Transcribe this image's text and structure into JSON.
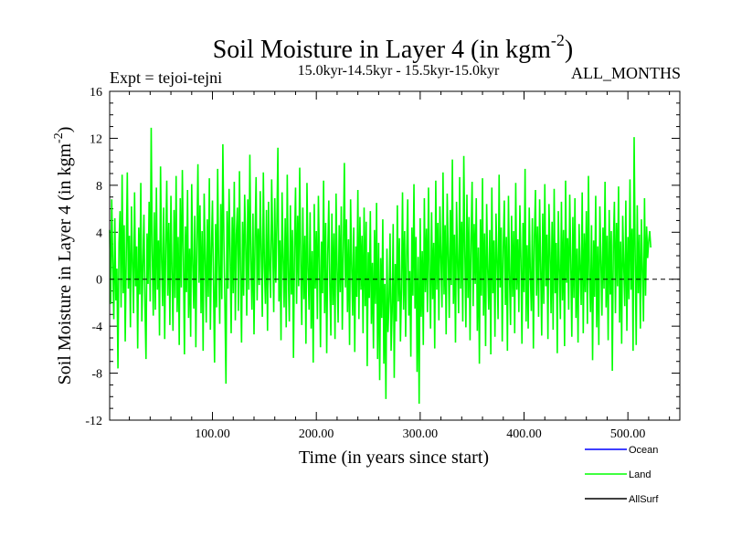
{
  "chart_data": {
    "type": "line",
    "title": "Soil Moisture in Layer 4 (in kgm",
    "title_sup": "-2",
    "title_close": ")",
    "experiment": "Expt = tejoi-tejni",
    "period": "15.0kyr-14.5kyr - 15.5kyr-15.0kyr",
    "months": "ALL_MONTHS",
    "xlabel": "Time (in years since start)",
    "ylabel": "Soil Moisture in Layer 4 (in kgm",
    "ylabel_sup": "-2",
    "ylabel_close": ")",
    "xlim": [
      1,
      550
    ],
    "ylim": [
      -12,
      16
    ],
    "x_ticks": [
      {
        "value": 100,
        "label": "100.00"
      },
      {
        "value": 200,
        "label": "200.00"
      },
      {
        "value": 300,
        "label": "300.00"
      },
      {
        "value": 400,
        "label": "400.00"
      },
      {
        "value": 500,
        "label": "500.00"
      }
    ],
    "y_ticks": [
      {
        "value": -12,
        "label": "-12"
      },
      {
        "value": -8,
        "label": "-8"
      },
      {
        "value": -4,
        "label": "-4"
      },
      {
        "value": 0,
        "label": "0"
      },
      {
        "value": 4,
        "label": "4"
      },
      {
        "value": 8,
        "label": "8"
      },
      {
        "value": 12,
        "label": "12"
      },
      {
        "value": 16,
        "label": "16"
      }
    ],
    "zero_line": true,
    "legend": [
      {
        "name": "Ocean",
        "color": "#0000ff"
      },
      {
        "name": "Land",
        "color": "#00ff00"
      },
      {
        "name": "AllSurf",
        "color": "#000000"
      }
    ],
    "series": [
      {
        "name": "Land",
        "color": "#00ff00",
        "x_start": 1,
        "x_step": 1,
        "values": [
          4.2,
          -2.1,
          6.8,
          1.5,
          -3.4,
          5.2,
          -1.8,
          0.9,
          -7.6,
          3.1,
          5.8,
          -2.4,
          8.9,
          -1.2,
          4.6,
          -5.3,
          2.2,
          9.1,
          -0.8,
          3.7,
          -4.1,
          6.2,
          1.4,
          -2.9,
          7.4,
          -0.6,
          2.8,
          -5.9,
          4.4,
          -1.3,
          8.2,
          -3.6,
          1.1,
          5.5,
          -2.2,
          -6.8,
          3.9,
          -0.4,
          6.6,
          -1.9,
          12.9,
          2.4,
          -3.1,
          5.7,
          -2.6,
          7.8,
          -0.9,
          3.3,
          -4.8,
          9.6,
          1.7,
          -2.3,
          6.1,
          -5.1,
          2.9,
          8.4,
          -1.4,
          4.8,
          -3.9,
          7.1,
          0.6,
          -4.4,
          5.9,
          -1.6,
          8.8,
          -2.8,
          3.6,
          -5.6,
          6.9,
          -0.7,
          9.3,
          2.1,
          -6.4,
          4.5,
          -1.1,
          7.6,
          -3.3,
          2.6,
          -4.9,
          8.1,
          1.3,
          -2.5,
          5.4,
          -5.8,
          3.2,
          9.8,
          -0.3,
          6.3,
          -2.9,
          4.1,
          -6.1,
          7.3,
          1.8,
          -3.7,
          5.1,
          -1.5,
          8.6,
          -4.3,
          2.5,
          6.7,
          -0.5,
          -7.1,
          4.7,
          -2.4,
          9.4,
          1.2,
          -3.8,
          6.4,
          -1.7,
          11.5,
          3.4,
          -2.2,
          -8.9,
          5.8,
          -0.8,
          7.7,
          2.3,
          -4.6,
          5.3,
          -1.2,
          8.3,
          -3.5,
          3.8,
          6.1,
          -2.7,
          9.2,
          0.7,
          -5.4,
          4.9,
          -1.4,
          7.2,
          2.9,
          -3.1,
          6.8,
          -0.9,
          10.6,
          1.6,
          -2.6,
          5.6,
          -4.7,
          3.5,
          8.7,
          -1.8,
          4.3,
          -0.5,
          7.5,
          2.2,
          -3.2,
          9.1,
          1.1,
          -2.1,
          5.9,
          -4.4,
          6.6,
          0.8,
          -1.6,
          8.5,
          3.1,
          -2.8,
          6.9,
          -0.3,
          4.6,
          11.2,
          -1.9,
          3.3,
          -5.2,
          7.4,
          1.9,
          -2.4,
          5.2,
          -4.1,
          8.9,
          0.4,
          -3.6,
          6.3,
          -1.3,
          4.2,
          -6.7,
          2.7,
          7.8,
          -2.1,
          5.4,
          -0.6,
          9.5,
          1.4,
          -3.9,
          6.1,
          -1.7,
          3.7,
          -5.5,
          8.2,
          0.9,
          -2.6,
          5.7,
          -4.2,
          2.4,
          -7.1,
          6.4,
          -0.8,
          4.1,
          -3.4,
          7.1,
          1.6,
          -5.8,
          3.2,
          -1.2,
          8.4,
          -2.9,
          4.8,
          -6.3,
          2.1,
          6.7,
          -0.4,
          -4.8,
          5.6,
          -2.2,
          3.9,
          -5.1,
          7.3,
          0.8,
          -3.7,
          4.6,
          -1.1,
          6.2,
          -4.3,
          2.6,
          9.9,
          -0.7,
          5.1,
          -2.8,
          3.4,
          -5.6,
          6.8,
          1.2,
          -3.1,
          4.4,
          -6.2,
          2.8,
          -1.5,
          7.6,
          -3.4,
          5.3,
          -0.9,
          3.7,
          -4.6,
          6.1,
          -2.3,
          4.9,
          -7.4,
          2.3,
          -1.6,
          5.8,
          -3.8,
          1.4,
          -5.9,
          4.2,
          -2.1,
          6.5,
          -6.8,
          3.1,
          -8.6,
          1.8,
          -3.3,
          5.1,
          -7.2,
          -0.4,
          -10.2,
          2.6,
          -4.5,
          -1.8,
          3.9,
          -6.1,
          -2.7,
          4.7,
          -8.4,
          1.3,
          -3.6,
          6.3,
          -1.9,
          3.5,
          -5.3,
          -0.8,
          7.4,
          -2.6,
          4.1,
          -4.9,
          2.2,
          6.8,
          -3.1,
          0.7,
          -6.6,
          4.4,
          -1.4,
          8.1,
          -2.5,
          3.6,
          -7.9,
          1.9,
          -10.6,
          5.2,
          -3.2,
          2.4,
          -5.6,
          6.9,
          -1.1,
          4.3,
          -2.8,
          7.8,
          0.6,
          -4.2,
          5.7,
          -1.7,
          3.1,
          -5.9,
          8.4,
          -0.9,
          4.8,
          -3.5,
          6.2,
          1.8,
          -2.4,
          9.1,
          -1.3,
          4.6,
          -4.7,
          7.3,
          2.1,
          -3.3,
          5.9,
          -0.5,
          10.2,
          -2.1,
          3.8,
          -5.4,
          6.6,
          1.3,
          -2.9,
          8.7,
          -0.8,
          4.9,
          -3.6,
          10.5,
          2.4,
          -4.1,
          7.2,
          -1.6,
          5.3,
          -5.2,
          3.2,
          8.3,
          -2.3,
          4.7,
          -0.4,
          6.9,
          -4.4,
          2.7,
          -7.2,
          5.1,
          -1.4,
          8.6,
          -3.1,
          3.9,
          -5.7,
          6.4,
          0.9,
          -2.6,
          4.2,
          -6.4,
          7.8,
          -1.2,
          3.3,
          -4.9,
          5.6,
          1.5,
          -3.4,
          8.9,
          -0.7,
          4.4,
          -5.3,
          2.8,
          6.7,
          -2.2,
          3.6,
          -6.1,
          7.1,
          0.3,
          -3.9,
          5.4,
          -1.5,
          4.1,
          -4.6,
          8.2,
          -0.9,
          3.4,
          -2.8,
          6.3,
          1.7,
          -5.5,
          4.8,
          -1.1,
          9.4,
          -3.6,
          2.9,
          -4.2,
          6.1,
          0.6,
          -2.7,
          5.2,
          -5.9,
          3.7,
          7.6,
          -1.4,
          4.5,
          -3.2,
          6.8,
          1.1,
          -4.8,
          5.6,
          -2.1,
          8.1,
          -0.6,
          3.8,
          -5.1,
          6.4,
          2.3,
          -2.9,
          4.9,
          -4.3,
          7.7,
          -1.2,
          3.1,
          -6.3,
          5.8,
          0.8,
          -3.4,
          6.6,
          -1.8,
          4.2,
          -5.7,
          8.4,
          -0.3,
          3.5,
          -2.6,
          7.2,
          1.4,
          -4.9,
          5.3,
          -1.6,
          6.9,
          -3.3,
          2.6,
          -5.4,
          4.7,
          0.9,
          -2.2,
          7.4,
          -4.6,
          3.9,
          -1.1,
          5.8,
          -3.8,
          8.8,
          0.4,
          -2.8,
          4.6,
          -6.9,
          3.3,
          -1.5,
          7.1,
          -4.1,
          2.8,
          -5.6,
          6.2,
          1.6,
          -3.1,
          4.4,
          -0.8,
          8.3,
          -2.4,
          3.7,
          -5.2,
          5.9,
          -1.3,
          4.1,
          -7.8,
          2.9,
          6.6,
          -2.9,
          4.8,
          -0.6,
          7.9,
          -3.7,
          3.2,
          -5.5,
          5.4,
          1.2,
          -2.3,
          6.7,
          -4.4,
          3.6,
          -1.7,
          8.5,
          -0.9,
          4.3,
          -6.1,
          12.1,
          2.1,
          -5.6,
          6.3,
          -1.2,
          3.8,
          -4.2,
          5.1,
          0.7,
          -3.6,
          6.9,
          -1.4,
          4.5,
          1.8,
          3.2,
          4.1,
          2.7
        ]
      },
      {
        "name": "Zero",
        "color": "#000000",
        "values": [
          0,
          0
        ]
      }
    ]
  }
}
